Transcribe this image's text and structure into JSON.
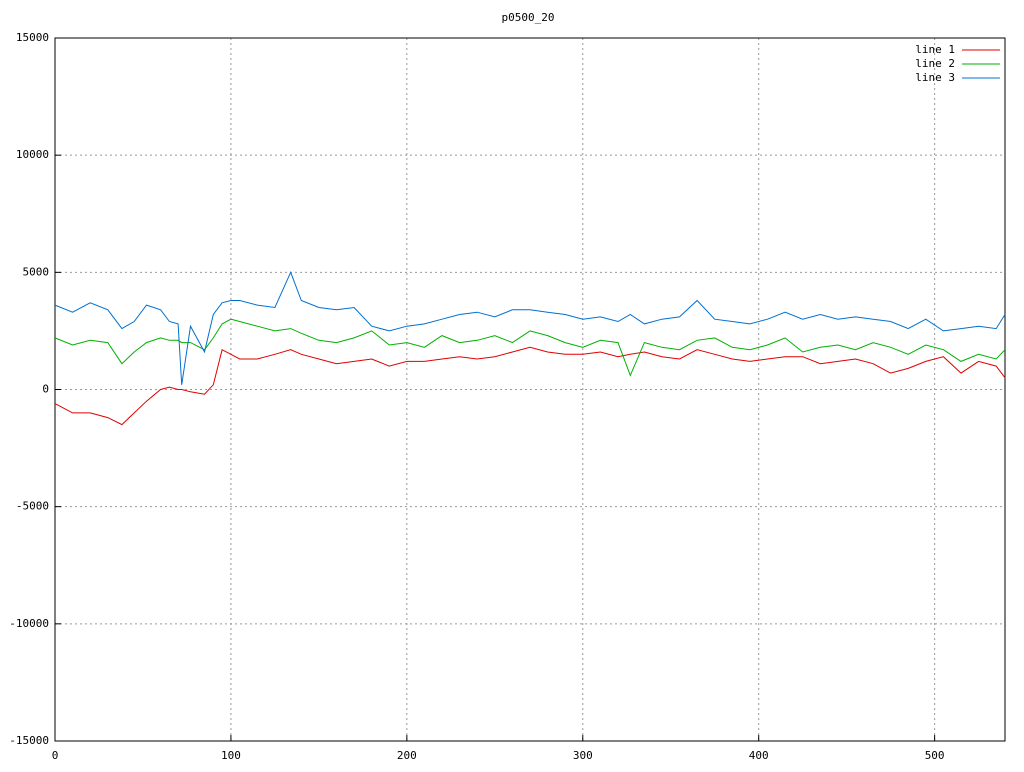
{
  "chart_data": {
    "type": "line",
    "title": "p0500_20",
    "x": [
      0,
      10,
      20,
      30,
      38,
      45,
      52,
      60,
      65,
      70,
      72,
      77,
      85,
      90,
      95,
      100,
      105,
      115,
      125,
      134,
      140,
      150,
      160,
      170,
      180,
      190,
      200,
      210,
      220,
      230,
      240,
      250,
      260,
      270,
      280,
      290,
      300,
      310,
      320,
      327,
      335,
      345,
      355,
      365,
      375,
      385,
      395,
      405,
      415,
      425,
      435,
      445,
      455,
      465,
      475,
      485,
      495,
      505,
      515,
      525,
      535,
      540
    ],
    "series": [
      {
        "name": "line 1",
        "color": "#e00000",
        "values": [
          -600,
          -1000,
          -1000,
          -1200,
          -1500,
          -1000,
          -500,
          0,
          100,
          0,
          0,
          -100,
          -200,
          200,
          1700,
          1500,
          1300,
          1300,
          1500,
          1700,
          1500,
          1300,
          1100,
          1200,
          1300,
          1000,
          1200,
          1200,
          1300,
          1400,
          1300,
          1400,
          1600,
          1800,
          1600,
          1500,
          1500,
          1600,
          1400,
          1500,
          1600,
          1400,
          1300,
          1700,
          1500,
          1300,
          1200,
          1300,
          1400,
          1400,
          1100,
          1200,
          1300,
          1100,
          700,
          900,
          1200,
          1400,
          700,
          1200,
          1000,
          500
        ]
      },
      {
        "name": "line 2",
        "color": "#00b000",
        "values": [
          2200,
          1900,
          2100,
          2000,
          1100,
          1600,
          2000,
          2200,
          2100,
          2100,
          2000,
          2000,
          1700,
          2200,
          2800,
          3000,
          2900,
          2700,
          2500,
          2600,
          2400,
          2100,
          2000,
          2200,
          2500,
          1900,
          2000,
          1800,
          2300,
          2000,
          2100,
          2300,
          2000,
          2500,
          2300,
          2000,
          1800,
          2100,
          2000,
          600,
          2000,
          1800,
          1700,
          2100,
          2200,
          1800,
          1700,
          1900,
          2200,
          1600,
          1800,
          1900,
          1700,
          2000,
          1800,
          1500,
          1900,
          1700,
          1200,
          1500,
          1300,
          1700
        ]
      },
      {
        "name": "line 3",
        "color": "#0070d0",
        "values": [
          3600,
          3300,
          3700,
          3400,
          2600,
          2900,
          3600,
          3400,
          2900,
          2800,
          200,
          2700,
          1600,
          3200,
          3700,
          3800,
          3800,
          3600,
          3500,
          5000,
          3800,
          3500,
          3400,
          3500,
          2700,
          2500,
          2700,
          2800,
          3000,
          3200,
          3300,
          3100,
          3400,
          3400,
          3300,
          3200,
          3000,
          3100,
          2900,
          3200,
          2800,
          3000,
          3100,
          3800,
          3000,
          2900,
          2800,
          3000,
          3300,
          3000,
          3200,
          3000,
          3100,
          3000,
          2900,
          2600,
          3000,
          2500,
          2600,
          2700,
          2600,
          3200
        ]
      }
    ],
    "xlim": [
      0,
      540
    ],
    "xticks": [
      0,
      100,
      200,
      300,
      400,
      500
    ],
    "ylim": [
      -15000,
      15000
    ],
    "yticks": [
      -15000,
      -10000,
      -5000,
      0,
      5000,
      10000,
      15000
    ],
    "grid": true,
    "legend": "top-right"
  }
}
